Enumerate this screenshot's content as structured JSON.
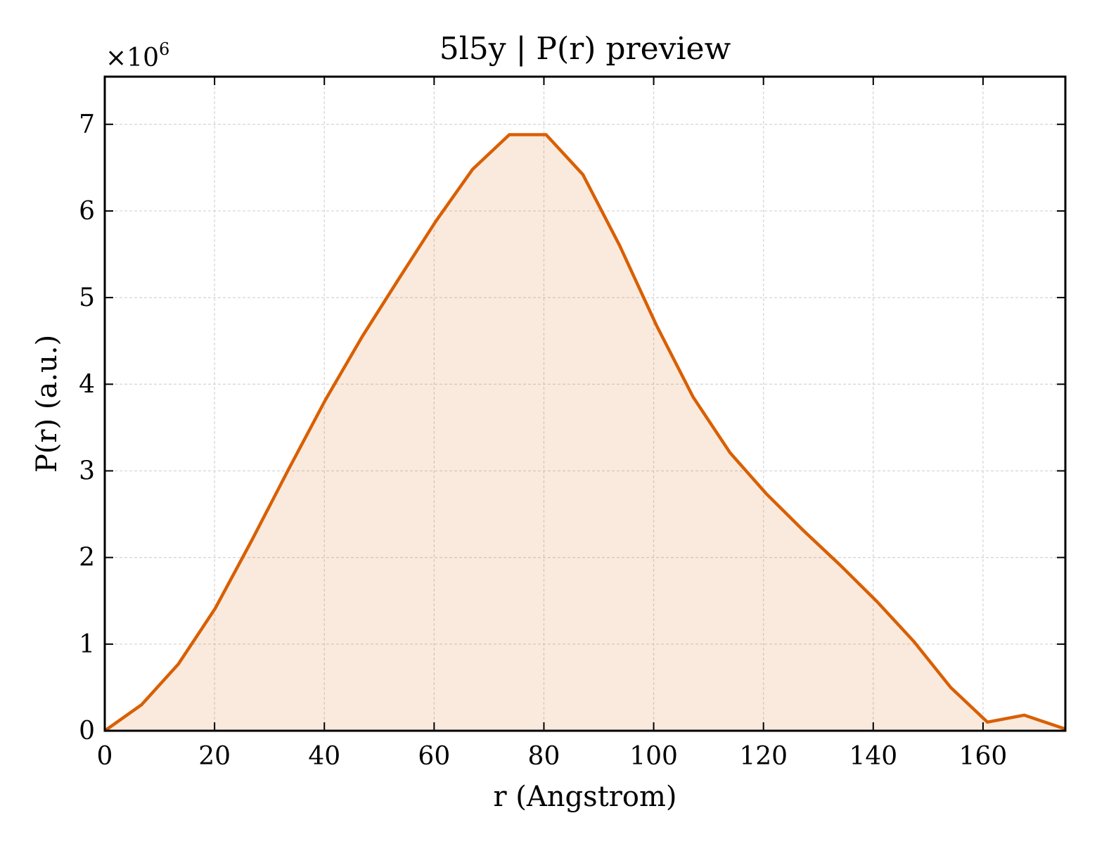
{
  "chart_data": {
    "type": "area",
    "title": "5l5y | P(r) preview",
    "xlabel": "r (Angstrom)",
    "ylabel": "P(r) (a.u.)",
    "y_offset_label": {
      "base": "×10",
      "exponent": "6"
    },
    "xlim": [
      0,
      175
    ],
    "ylim": [
      0,
      7.55
    ],
    "y_scale_multiplier": 1000000,
    "x_ticks": [
      0,
      20,
      40,
      60,
      80,
      100,
      120,
      140,
      160
    ],
    "y_ticks": [
      0,
      1,
      2,
      3,
      4,
      5,
      6,
      7
    ],
    "grid": true,
    "series": [
      {
        "color": "#d95f02",
        "fill_color": "#d95f02",
        "x": [
          0,
          6.7,
          13.4,
          20.1,
          26.8,
          33.5,
          40.2,
          46.9,
          53.6,
          60.3,
          67.0,
          73.7,
          80.4,
          87.1,
          93.8,
          100.5,
          107.2,
          113.9,
          120.6,
          127.3,
          134.0,
          140.7,
          147.4,
          154.1,
          160.8,
          167.5,
          175.0
        ],
        "y": [
          0,
          0.3,
          0.77,
          1.41,
          2.2,
          3.02,
          3.82,
          4.55,
          5.22,
          5.88,
          6.48,
          6.88,
          6.88,
          6.42,
          5.6,
          4.68,
          3.85,
          3.21,
          2.73,
          2.31,
          1.91,
          1.49,
          1.03,
          0.5,
          0.1,
          0.18,
          0.02
        ]
      }
    ]
  }
}
